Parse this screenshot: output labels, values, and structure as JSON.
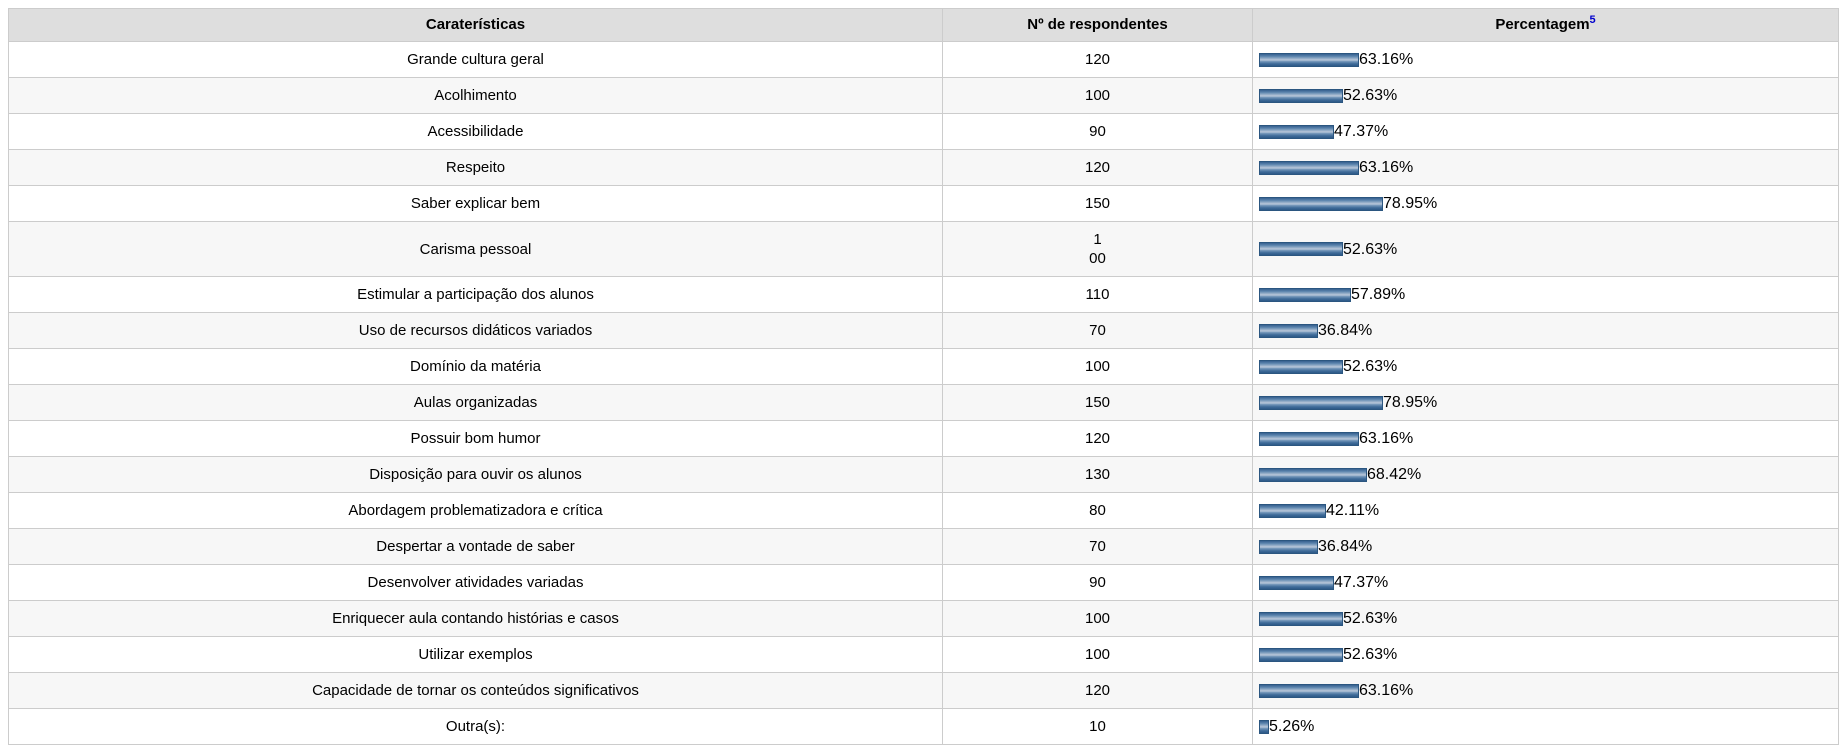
{
  "table": {
    "columns": [
      {
        "header": "Caraterísticas"
      },
      {
        "header": "Nº de respondentes"
      },
      {
        "header": "Percentagem",
        "footnote": "5"
      }
    ],
    "rows": [
      {
        "label": "Grande cultura geral",
        "respondents": "120",
        "percent": 63.16,
        "percent_label": "63.16%"
      },
      {
        "label": "Acolhimento",
        "respondents": "100",
        "percent": 52.63,
        "percent_label": "52.63%"
      },
      {
        "label": "Acessibilidade",
        "respondents": "90",
        "percent": 47.37,
        "percent_label": "47.37%"
      },
      {
        "label": "Respeito",
        "respondents": "120",
        "percent": 63.16,
        "percent_label": "63.16%"
      },
      {
        "label": "Saber explicar bem",
        "respondents": "150",
        "percent": 78.95,
        "percent_label": "78.95%"
      },
      {
        "label": "Carisma pessoal",
        "respondents": "1\n00",
        "percent": 52.63,
        "percent_label": "52.63%"
      },
      {
        "label": "Estimular a participação dos alunos",
        "respondents": "110",
        "percent": 57.89,
        "percent_label": "57.89%"
      },
      {
        "label": "Uso de recursos didáticos variados",
        "respondents": "70",
        "percent": 36.84,
        "percent_label": "36.84%"
      },
      {
        "label": "Domínio da matéria",
        "respondents": "100",
        "percent": 52.63,
        "percent_label": "52.63%"
      },
      {
        "label": "Aulas organizadas",
        "respondents": "150",
        "percent": 78.95,
        "percent_label": "78.95%"
      },
      {
        "label": "Possuir bom humor",
        "respondents": "120",
        "percent": 63.16,
        "percent_label": "63.16%"
      },
      {
        "label": "Disposição para ouvir os alunos",
        "respondents": "130",
        "percent": 68.42,
        "percent_label": "68.42%"
      },
      {
        "label": "Abordagem problematizadora e crítica",
        "respondents": "80",
        "percent": 42.11,
        "percent_label": "42.11%"
      },
      {
        "label": "Despertar a vontade de saber",
        "respondents": "70",
        "percent": 36.84,
        "percent_label": "36.84%"
      },
      {
        "label": "Desenvolver atividades variadas",
        "respondents": "90",
        "percent": 47.37,
        "percent_label": "47.37%"
      },
      {
        "label": "Enriquecer aula contando histórias e casos",
        "respondents": "100",
        "percent": 52.63,
        "percent_label": "52.63%"
      },
      {
        "label": "Utilizar exemplos",
        "respondents": "100",
        "percent": 52.63,
        "percent_label": "52.63%"
      },
      {
        "label": "Capacidade de tornar os conteúdos significativos",
        "respondents": "120",
        "percent": 63.16,
        "percent_label": "63.16%"
      },
      {
        "label": "Outra(s):",
        "respondents": "10",
        "percent": 5.26,
        "percent_label": "5.26%"
      }
    ]
  },
  "chart_data": {
    "type": "bar",
    "orientation": "horizontal",
    "title": "Caraterísticas / Nº de respondentes / Percentagem",
    "categories": [
      "Grande cultura geral",
      "Acolhimento",
      "Acessibilidade",
      "Respeito",
      "Saber explicar bem",
      "Carisma pessoal",
      "Estimular a participação dos alunos",
      "Uso de recursos didáticos variados",
      "Domínio da matéria",
      "Aulas organizadas",
      "Possuir bom humor",
      "Disposição para ouvir os alunos",
      "Abordagem problematizadora e crítica",
      "Despertar a vontade de saber",
      "Desenvolver atividades variadas",
      "Enriquecer aula contando histórias e casos",
      "Utilizar exemplos",
      "Capacidade de tornar os conteúdos significativos",
      "Outra(s):"
    ],
    "series": [
      {
        "name": "Nº de respondentes",
        "values": [
          120,
          100,
          90,
          120,
          150,
          100,
          110,
          70,
          100,
          150,
          120,
          130,
          80,
          70,
          90,
          100,
          100,
          120,
          10
        ]
      },
      {
        "name": "Percentagem",
        "values": [
          63.16,
          52.63,
          47.37,
          63.16,
          78.95,
          52.63,
          57.89,
          36.84,
          52.63,
          78.95,
          63.16,
          68.42,
          42.11,
          36.84,
          47.37,
          52.63,
          52.63,
          63.16,
          5.26
        ]
      }
    ],
    "value_suffix": "%",
    "xlim": [
      0,
      100
    ],
    "grid": false,
    "legend_position": "none"
  },
  "colors": {
    "header_bg": "#dedede",
    "row_alt_bg": "#f7f7f7",
    "border": "#cccccc",
    "bar_main": "#3f6b99",
    "bar_highlight": "#bac8da",
    "footnote_link": "#0000cc"
  }
}
